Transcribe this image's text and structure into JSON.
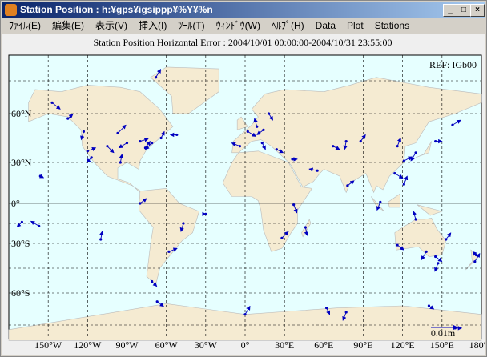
{
  "window": {
    "title": "Station Position : h:¥gps¥igsippp¥%Y¥%n"
  },
  "menu": [
    "ﾌｧｲﾙ(E)",
    "編集(E)",
    "表示(V)",
    "挿入(I)",
    "ﾂｰﾙ(T)",
    "ｳｨﾝﾄﾞｳ(W)",
    "ﾍﾙﾌﾟ(H)",
    "Data",
    "Plot",
    "Stations"
  ],
  "plot": {
    "title": "Station Position Horizontal Error : 2004/10/01 00:00:00-2004/10/31 23:55:00",
    "ref": "REF: IGb00",
    "scale_label": "0.01m",
    "lon_labels": [
      "150°W",
      "120°W",
      "90°W",
      "60°W",
      "30°W",
      "0°",
      "30°E",
      "60°E",
      "90°E",
      "120°E",
      "150°E",
      "180°"
    ],
    "lat_labels": [
      "60°N",
      "30°N",
      "0°",
      "30°S",
      "60°S"
    ]
  }
}
